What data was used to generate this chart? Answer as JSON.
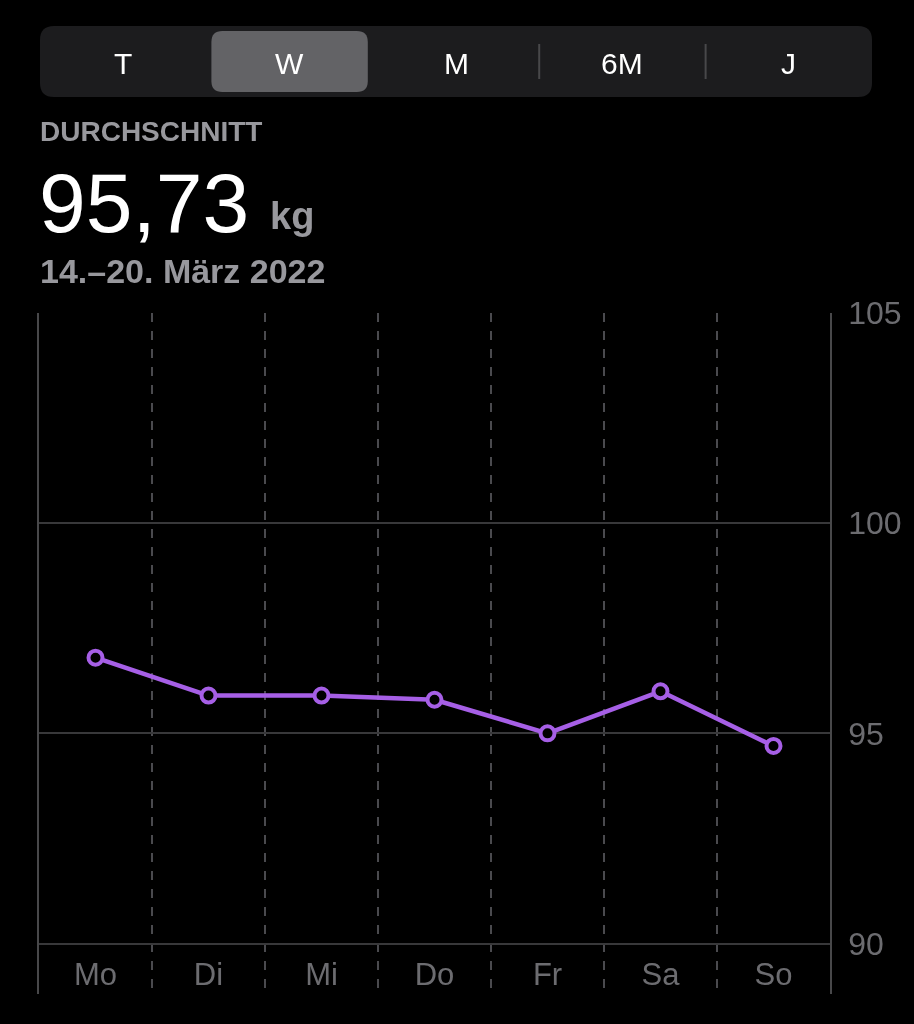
{
  "chart_data": {
    "type": "line",
    "title": "DURCHSCHNITT",
    "subtitle": "14.–20. März 2022",
    "annotations": [
      "T",
      "W",
      "M",
      "6M",
      "J",
      "95,73",
      "kg"
    ],
    "categories": [
      "Mo",
      "Di",
      "Mi",
      "Do",
      "Fr",
      "Sa",
      "So"
    ],
    "ylim": [
      88.8,
      105
    ],
    "yticks": [
      90,
      95,
      100,
      105
    ],
    "grid": true,
    "marker": "circle",
    "line_style": "solid",
    "series": [
      {
        "color": "#a65fe6",
        "values": [
          96.8,
          95.9,
          95.9,
          95.8,
          95.0,
          96.0,
          94.7
        ]
      }
    ]
  }
}
